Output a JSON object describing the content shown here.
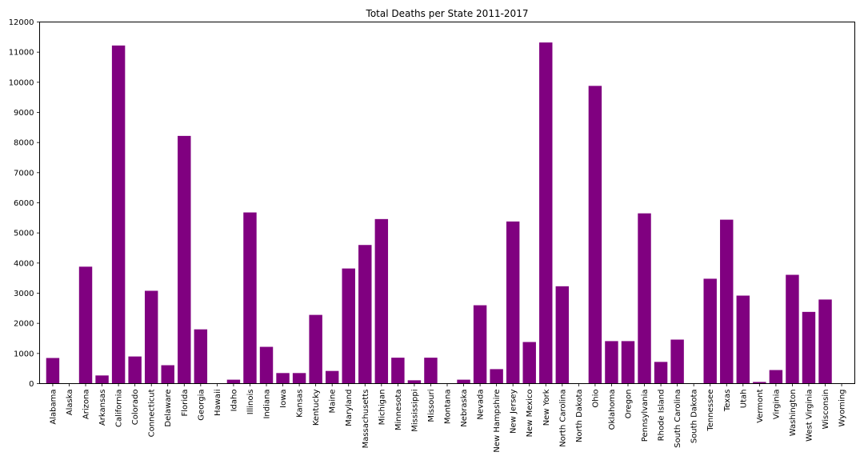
{
  "chart_data": {
    "type": "bar",
    "title": "Total Deaths per State 2011-2017",
    "xlabel": "",
    "ylabel": "",
    "ylim": [
      0,
      12000
    ],
    "yticks": [
      0,
      1000,
      2000,
      3000,
      4000,
      5000,
      6000,
      7000,
      8000,
      9000,
      10000,
      11000,
      12000
    ],
    "grid": false,
    "bar_color": "#800080",
    "categories": [
      "Alabama",
      "Alaska",
      "Arizona",
      "Arkansas",
      "California",
      "Colorado",
      "Connecticut",
      "Delaware",
      "Florida",
      "Georgia",
      "Hawaii",
      "Idaho",
      "Illinois",
      "Indiana",
      "Iowa",
      "Kansas",
      "Kentucky",
      "Maine",
      "Maryland",
      "Massachusetts",
      "Michigan",
      "Minnesota",
      "Mississippi",
      "Missouri",
      "Montana",
      "Nebraska",
      "Nevada",
      "New Hampshire",
      "New Jersey",
      "New Mexico",
      "New York",
      "North Carolina",
      "North Dakota",
      "Ohio",
      "Oklahoma",
      "Oregon",
      "Pennsylvania",
      "Rhode Island",
      "South Carolina",
      "South Dakota",
      "Tennessee",
      "Texas",
      "Utah",
      "Vermont",
      "Virginia",
      "Washington",
      "West Virginia",
      "Wisconsin",
      "Wyoming"
    ],
    "values": [
      850,
      0,
      3880,
      270,
      11220,
      900,
      3080,
      610,
      8220,
      1800,
      0,
      130,
      5680,
      1220,
      350,
      350,
      2280,
      420,
      3820,
      4600,
      5460,
      860,
      110,
      860,
      0,
      130,
      2600,
      480,
      5380,
      1380,
      11320,
      3230,
      0,
      9880,
      1410,
      1410,
      5650,
      720,
      1460,
      0,
      3480,
      5440,
      2920,
      55,
      450,
      3610,
      2380,
      2790,
      0
    ]
  }
}
